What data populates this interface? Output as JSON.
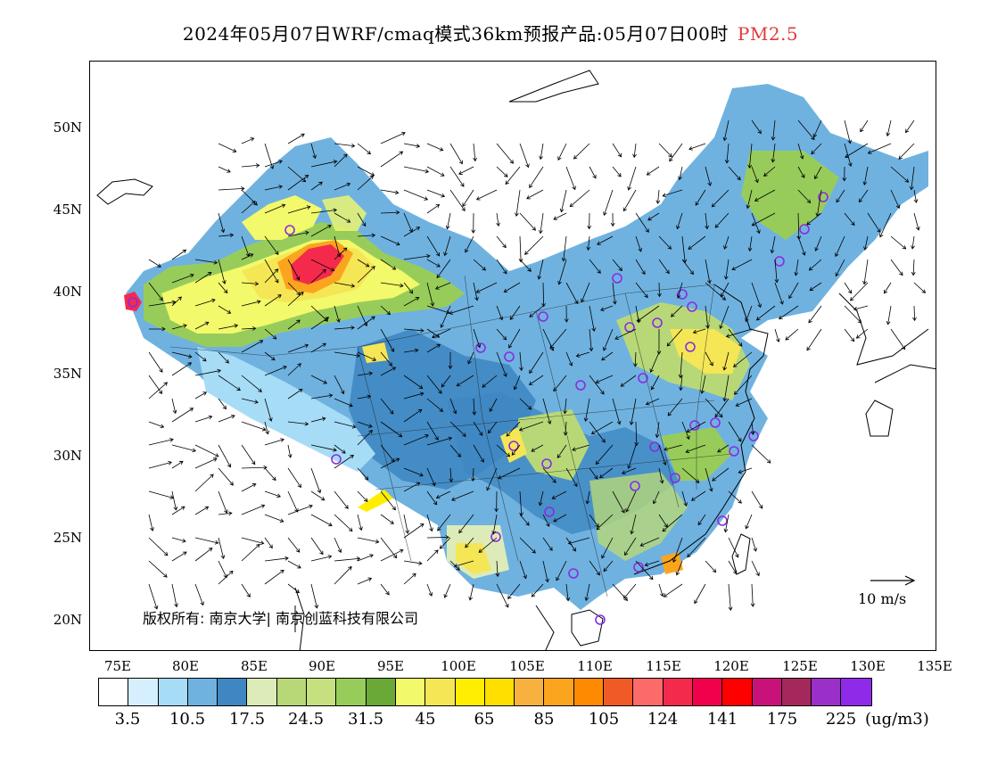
{
  "title": {
    "main": "2024年05月07日WRF/cmaq模式36km预报产品:05月07日00时",
    "pollutant": "PM2.5"
  },
  "map": {
    "lat_labels": [
      "50N",
      "45N",
      "40N",
      "35N",
      "30N",
      "25N",
      "20N"
    ],
    "lon_labels": [
      "75E",
      "80E",
      "85E",
      "90E",
      "95E",
      "100E",
      "105E",
      "110E",
      "115E",
      "120E",
      "125E",
      "130E",
      "135E"
    ],
    "copyright": "版权所有: 南京大学| 南京创蓝科技有限公司",
    "wind_reference": "10 m/s"
  },
  "colorbar": {
    "colors": [
      "#ffffff",
      "#d6efff",
      "#a6dcf6",
      "#6fb2e0",
      "#3f87c2",
      "#dcebb8",
      "#b8d878",
      "#c6e080",
      "#98cc5a",
      "#6aa838",
      "#f2f96a",
      "#f5e655",
      "#ffee00",
      "#ffdf00",
      "#f7b13e",
      "#fba51f",
      "#fd8a00",
      "#f05a27",
      "#fd6a6a",
      "#f42a4c",
      "#f1004c",
      "#ff0000",
      "#c8127a",
      "#a4295a",
      "#9b30c8",
      "#8e2ae8"
    ],
    "tick_labels": [
      "3.5",
      "10.5",
      "17.5",
      "24.5",
      "31.5",
      "45",
      "65",
      "85",
      "105",
      "124",
      "141",
      "175",
      "225"
    ],
    "unit": "(ug/m3)"
  }
}
